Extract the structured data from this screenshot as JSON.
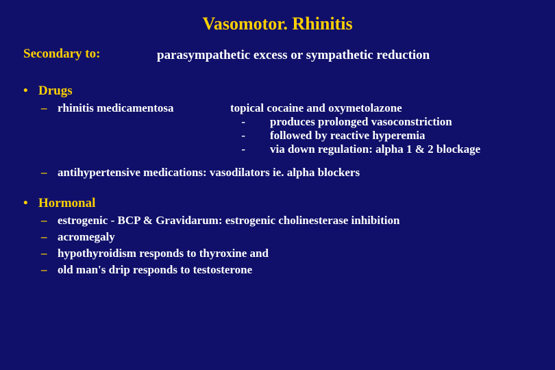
{
  "title": "Vasomotor. Rhinitis",
  "secondary_label": "Secondary to:",
  "secondary_value": "parasympathetic excess or sympathetic reduction",
  "drugs": {
    "heading": "Drugs",
    "rm": {
      "name": "rhinitis medicamentosa",
      "right_first": "topical cocaine and oxymetolazone",
      "lines": [
        "produces prolonged vasoconstriction",
        "followed by reactive hyperemia",
        "via down regulation: alpha 1 & 2 blockage"
      ]
    },
    "antihyp": "antihypertensive medications: vasodilators ie. alpha blockers"
  },
  "hormonal": {
    "heading": "Hormonal",
    "items": [
      "estrogenic - BCP & Gravidarum: estrogenic cholinesterase inhibition",
      "acromegaly",
      "hypothyroidism responds to thyroxine and",
      "old man's drip responds to testosterone"
    ]
  }
}
